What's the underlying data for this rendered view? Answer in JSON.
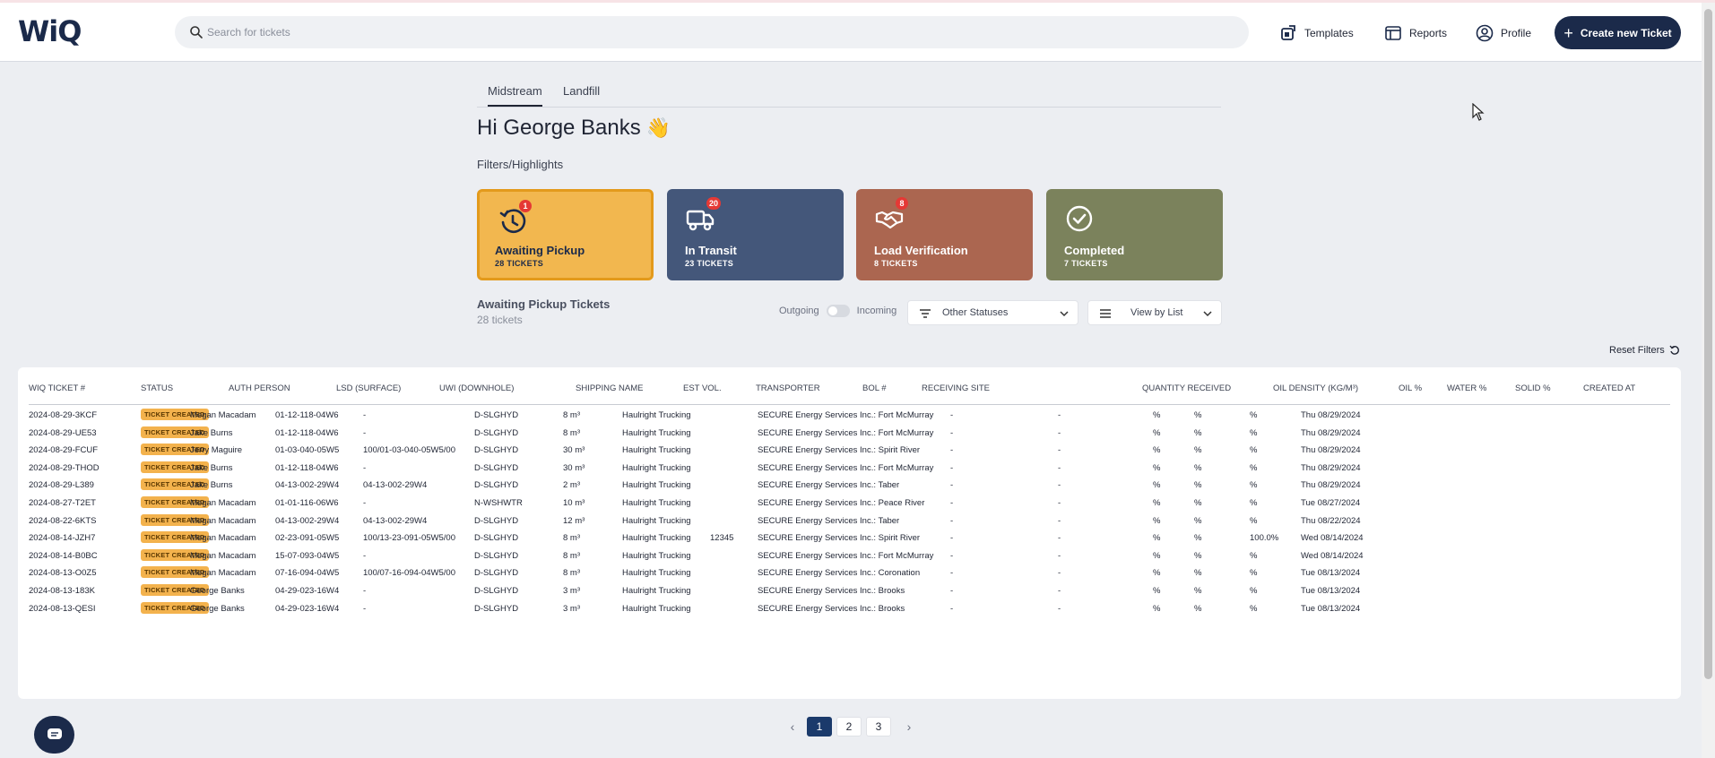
{
  "app": {
    "logo": "WiQ"
  },
  "search": {
    "placeholder": "Search for tickets"
  },
  "nav": {
    "templates": "Templates",
    "reports": "Reports",
    "profile": "Profile",
    "create": "Create new Ticket"
  },
  "tabs": [
    {
      "label": "Midstream",
      "active": true
    },
    {
      "label": "Landfill",
      "active": false
    }
  ],
  "greeting": {
    "text": "Hi George Banks",
    "emoji": "👋"
  },
  "filters_label": "Filters/Highlights",
  "cards": [
    {
      "title": "Awaiting Pickup",
      "count": "28 TICKETS",
      "badge": "1",
      "color": "#f2b74f",
      "icon": "clock-history-icon"
    },
    {
      "title": "In Transit",
      "count": "23 TICKETS",
      "badge": "20",
      "color": "#44577a",
      "icon": "truck-icon"
    },
    {
      "title": "Load Verification",
      "count": "8 TICKETS",
      "badge": "8",
      "color": "#ab6650",
      "icon": "handshake-icon"
    },
    {
      "title": "Completed",
      "count": "7 TICKETS",
      "badge": "",
      "color": "#7b825c",
      "icon": "check-circle-icon"
    }
  ],
  "section": {
    "title": "Awaiting Pickup Tickets",
    "subtitle": "28 tickets"
  },
  "toggle": {
    "left": "Outgoing",
    "right": "Incoming"
  },
  "status_dropdown": {
    "value": "Other Statuses"
  },
  "view_dropdown": {
    "value": "View by List"
  },
  "reset_filters": "Reset Filters",
  "table": {
    "headers": [
      "WIQ TICKET #",
      "STATUS",
      "AUTH PERSON",
      "LSD (SURFACE)",
      "UWI (DOWNHOLE)",
      "SHIPPING NAME",
      "EST VOL.",
      "TRANSPORTER",
      "BOL #",
      "RECEIVING SITE",
      "QUANTITY RECEIVED",
      "OIL DENSITY (KG/M³)",
      "OIL %",
      "WATER %",
      "SOLID %",
      "CREATED AT"
    ],
    "rows": [
      [
        "2024-08-29-3KCF",
        "TICKET CREATED",
        "Megan Macadam",
        "01-12-118-04W6",
        "-",
        "D-SLGHYD",
        "8 m³",
        "Haulright Trucking",
        "",
        "SECURE Energy Services Inc.: Fort McMurray",
        "-",
        "-",
        "%",
        "%",
        "%",
        "Thu 08/29/2024"
      ],
      [
        "2024-08-29-UE53",
        "TICKET CREATED",
        "Jake Burns",
        "01-12-118-04W6",
        "-",
        "D-SLGHYD",
        "8 m³",
        "Haulright Trucking",
        "",
        "SECURE Energy Services Inc.: Fort McMurray",
        "-",
        "-",
        "%",
        "%",
        "%",
        "Thu 08/29/2024"
      ],
      [
        "2024-08-29-FCUF",
        "TICKET CREATED",
        "Jerry Maguire",
        "01-03-040-05W5",
        "100/01-03-040-05W5/00",
        "D-SLGHYD",
        "30 m³",
        "Haulright Trucking",
        "",
        "SECURE Energy Services Inc.: Spirit River",
        "-",
        "-",
        "%",
        "%",
        "%",
        "Thu 08/29/2024"
      ],
      [
        "2024-08-29-THOD",
        "TICKET CREATED",
        "Jake Burns",
        "01-12-118-04W6",
        "-",
        "D-SLGHYD",
        "30 m³",
        "Haulright Trucking",
        "",
        "SECURE Energy Services Inc.: Fort McMurray",
        "-",
        "-",
        "%",
        "%",
        "%",
        "Thu 08/29/2024"
      ],
      [
        "2024-08-29-L389",
        "TICKET CREATED",
        "Jake Burns",
        "04-13-002-29W4",
        "04-13-002-29W4",
        "D-SLGHYD",
        "2 m³",
        "Haulright Trucking",
        "",
        "SECURE Energy Services Inc.: Taber",
        "-",
        "-",
        "%",
        "%",
        "%",
        "Thu 08/29/2024"
      ],
      [
        "2024-08-27-T2ET",
        "TICKET CREATED",
        "Megan Macadam",
        "01-01-116-06W6",
        "-",
        "N-WSHWTR",
        "10 m³",
        "Haulright Trucking",
        "",
        "SECURE Energy Services Inc.: Peace River",
        "-",
        "-",
        "%",
        "%",
        "%",
        "Tue 08/27/2024"
      ],
      [
        "2024-08-22-6KTS",
        "TICKET CREATED",
        "Megan Macadam",
        "04-13-002-29W4",
        "04-13-002-29W4",
        "D-SLGHYD",
        "12 m³",
        "Haulright Trucking",
        "",
        "SECURE Energy Services Inc.: Taber",
        "-",
        "-",
        "%",
        "%",
        "%",
        "Thu 08/22/2024"
      ],
      [
        "2024-08-14-JZH7",
        "TICKET CREATED",
        "Megan Macadam",
        "02-23-091-05W5",
        "100/13-23-091-05W5/00",
        "D-SLGHYD",
        "8 m³",
        "Haulright Trucking",
        "12345",
        "SECURE Energy Services Inc.: Spirit River",
        "-",
        "-",
        "%",
        "%",
        "100.0%",
        "Wed 08/14/2024"
      ],
      [
        "2024-08-14-B0BC",
        "TICKET CREATED",
        "Megan Macadam",
        "15-07-093-04W5",
        "-",
        "D-SLGHYD",
        "8 m³",
        "Haulright Trucking",
        "",
        "SECURE Energy Services Inc.: Fort McMurray",
        "-",
        "-",
        "%",
        "%",
        "%",
        "Wed 08/14/2024"
      ],
      [
        "2024-08-13-O0Z5",
        "TICKET CREATED",
        "Megan Macadam",
        "07-16-094-04W5",
        "100/07-16-094-04W5/00",
        "D-SLGHYD",
        "8 m³",
        "Haulright Trucking",
        "",
        "SECURE Energy Services Inc.: Coronation",
        "-",
        "-",
        "%",
        "%",
        "%",
        "Tue 08/13/2024"
      ],
      [
        "2024-08-13-183K",
        "TICKET CREATED",
        "George Banks",
        "04-29-023-16W4",
        "-",
        "D-SLGHYD",
        "3 m³",
        "Haulright Trucking",
        "",
        "SECURE Energy Services Inc.: Brooks",
        "-",
        "-",
        "%",
        "%",
        "%",
        "Tue 08/13/2024"
      ],
      [
        "2024-08-13-QESI",
        "TICKET CREATED",
        "George Banks",
        "04-29-023-16W4",
        "-",
        "D-SLGHYD",
        "3 m³",
        "Haulright Trucking",
        "",
        "SECURE Energy Services Inc.: Brooks",
        "-",
        "-",
        "%",
        "%",
        "%",
        "Tue 08/13/2024"
      ]
    ]
  },
  "pagination": {
    "prev": "‹",
    "pages": [
      "1",
      "2",
      "3"
    ],
    "current": "1",
    "next": "›"
  }
}
